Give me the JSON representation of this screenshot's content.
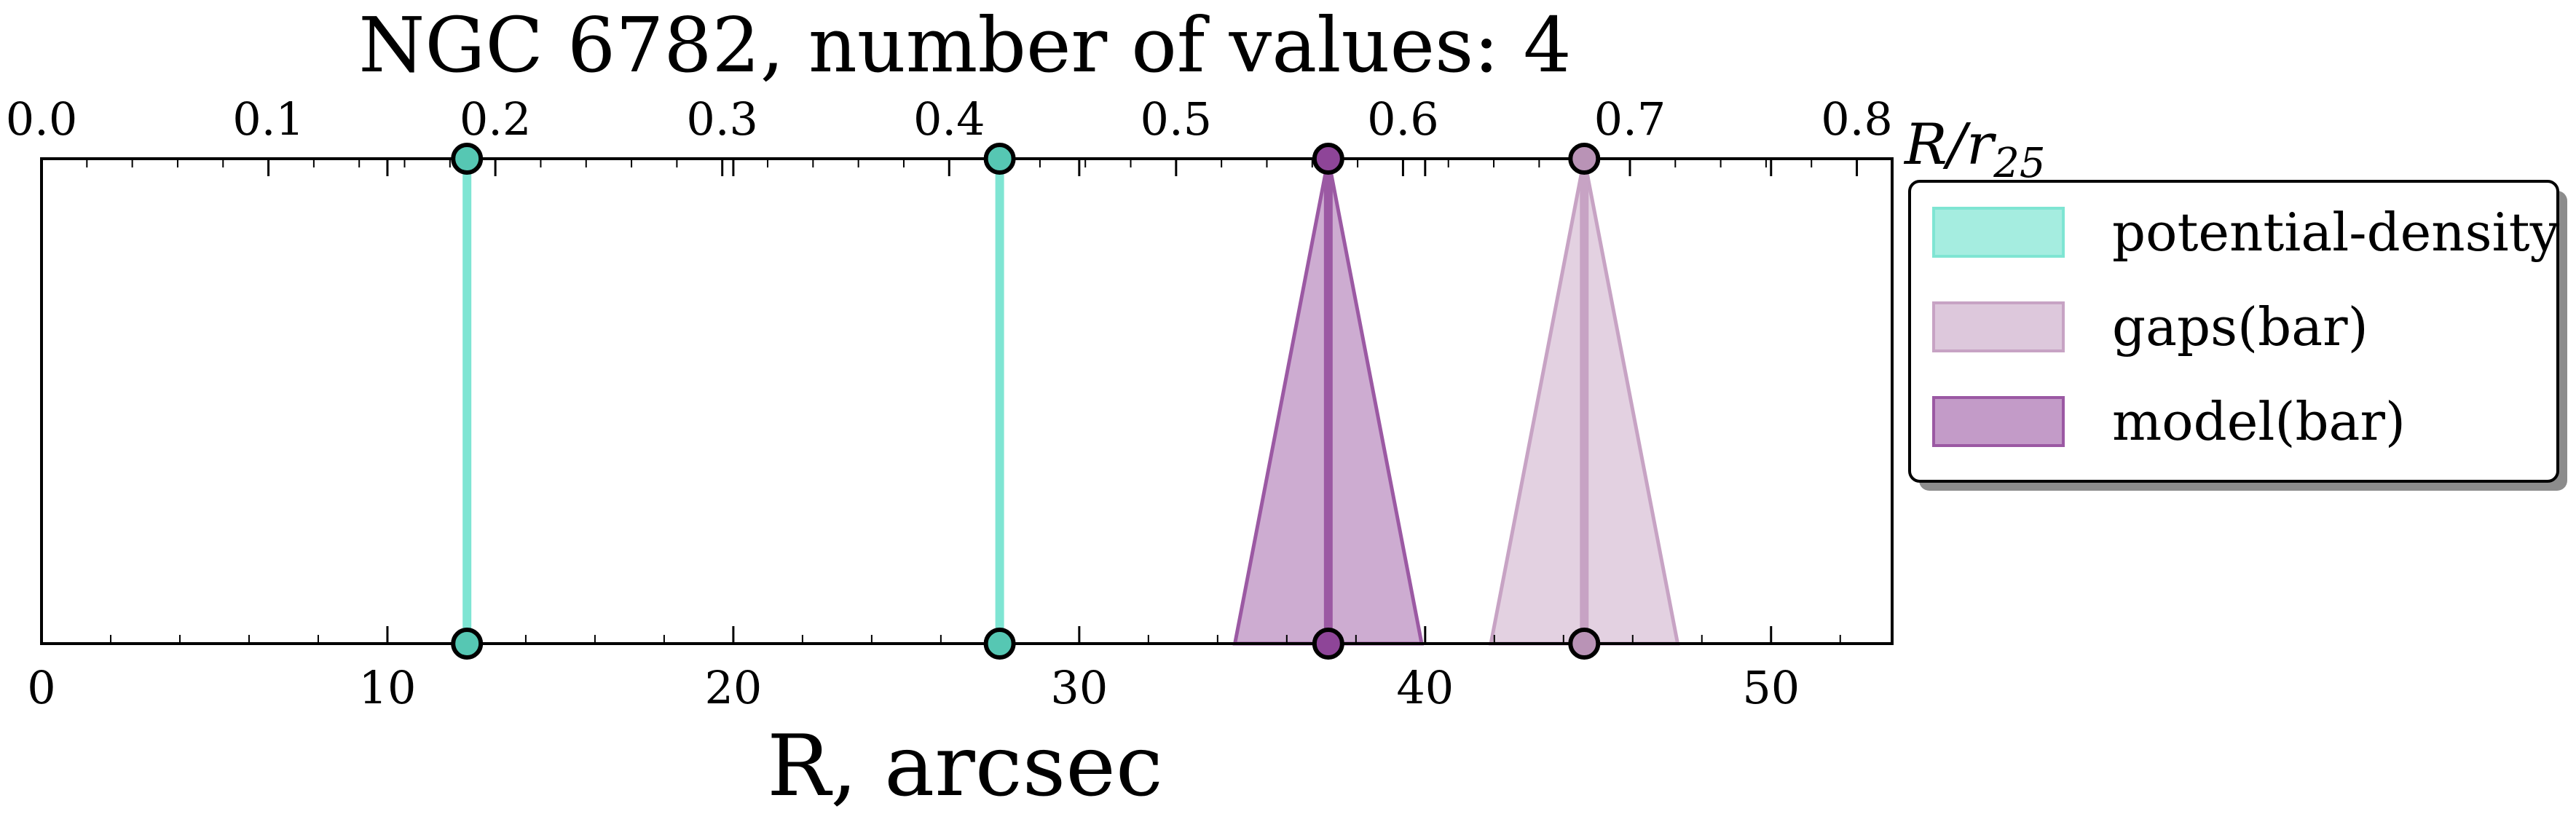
{
  "chart_data": {
    "type": "scatter",
    "title": "NGC 6782, number of values: 4",
    "xlabel": "R, arcsec",
    "xlim": [
      0,
      53.5
    ],
    "xticks": [
      0,
      10,
      20,
      30,
      40,
      50
    ],
    "top_axis": {
      "label": "R/r25",
      "label_main": "R/r",
      "label_sub": "25",
      "ticks": [
        "0.0",
        "0.1",
        "0.2",
        "0.3",
        "0.4",
        "0.5",
        "0.6",
        "0.7",
        "0.8"
      ],
      "r25_arcsec": 65.6
    },
    "grid": false,
    "legend_position": "right",
    "series": [
      {
        "name": "potential-density",
        "color": "#7fe5d3",
        "marker_fill": "#56c7b3",
        "values": [
          {
            "r": 12.3,
            "r_min": 12.3,
            "r_max": 12.3
          },
          {
            "r": 27.7,
            "r_min": 27.7,
            "r_max": 27.7
          }
        ]
      },
      {
        "name": "gaps(bar)",
        "color": "#c7a3c4",
        "marker_fill": "#b993b6",
        "values": [
          {
            "r": 44.6,
            "r_min": 41.9,
            "r_max": 47.3
          }
        ]
      },
      {
        "name": "model(bar)",
        "color": "#9b59a3",
        "marker_fill": "#8e4598",
        "values": [
          {
            "r": 37.2,
            "r_min": 34.5,
            "r_max": 39.9
          }
        ]
      }
    ]
  }
}
